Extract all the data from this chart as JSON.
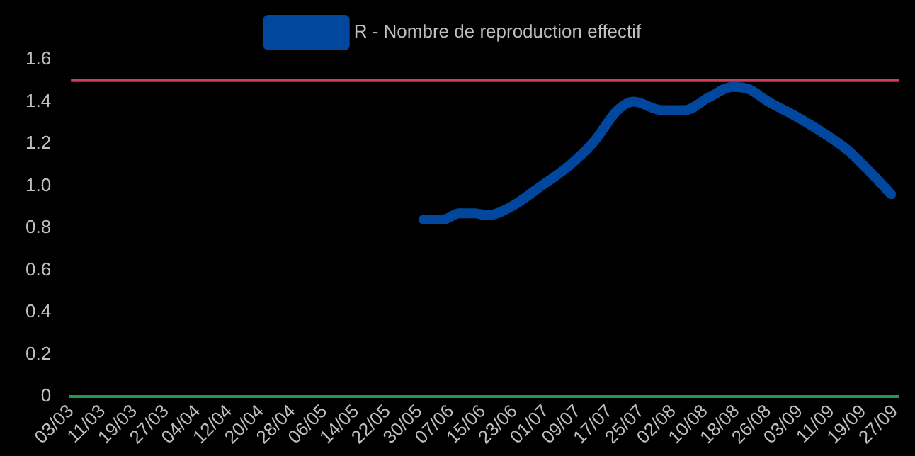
{
  "chart_data": {
    "type": "line",
    "x": [
      "--05-31",
      "--06-05",
      "--06-09",
      "--06-13",
      "--06-16",
      "--06-22",
      "--06-29",
      "--07-07",
      "--07-13",
      "--07-19",
      "--07-23",
      "--07-30",
      "--08-05",
      "--08-11",
      "--08-17",
      "--08-21",
      "--08-26",
      "--09-02",
      "--09-09",
      "--09-15",
      "--09-21",
      "--09-26"
    ],
    "series": [
      {
        "name": "R - Nombre de reproduction effectif",
        "color": "#00479d",
        "values": [
          0.84,
          0.84,
          0.87,
          0.87,
          0.86,
          0.9,
          0.99,
          1.1,
          1.21,
          1.36,
          1.4,
          1.36,
          1.36,
          1.42,
          1.47,
          1.46,
          1.4,
          1.33,
          1.25,
          1.17,
          1.06,
          0.96
        ]
      }
    ],
    "xlim": [
      "--03-03",
      "--09-28"
    ],
    "xticks": [
      {
        "value": "--03-03",
        "label": "03/03"
      },
      {
        "value": "--03-11",
        "label": "11/03"
      },
      {
        "value": "--03-19",
        "label": "19/03"
      },
      {
        "value": "--03-27",
        "label": "27/03"
      },
      {
        "value": "--04-04",
        "label": "04/04"
      },
      {
        "value": "--04-12",
        "label": "12/04"
      },
      {
        "value": "--04-20",
        "label": "20/04"
      },
      {
        "value": "--04-28",
        "label": "28/04"
      },
      {
        "value": "--05-06",
        "label": "06/05"
      },
      {
        "value": "--05-14",
        "label": "14/05"
      },
      {
        "value": "--05-22",
        "label": "22/05"
      },
      {
        "value": "--05-30",
        "label": "30/05"
      },
      {
        "value": "--06-07",
        "label": "07/06"
      },
      {
        "value": "--06-15",
        "label": "15/06"
      },
      {
        "value": "--06-23",
        "label": "23/06"
      },
      {
        "value": "--07-01",
        "label": "01/07"
      },
      {
        "value": "--07-09",
        "label": "09/07"
      },
      {
        "value": "--07-17",
        "label": "17/07"
      },
      {
        "value": "--07-25",
        "label": "25/07"
      },
      {
        "value": "--08-02",
        "label": "02/08"
      },
      {
        "value": "--08-10",
        "label": "10/08"
      },
      {
        "value": "--08-18",
        "label": "18/08"
      },
      {
        "value": "--08-26",
        "label": "26/08"
      },
      {
        "value": "--09-03",
        "label": "03/09"
      },
      {
        "value": "--09-11",
        "label": "11/09"
      },
      {
        "value": "--09-19",
        "label": "19/09"
      },
      {
        "value": "--09-27",
        "label": "27/09"
      }
    ],
    "ylim": [
      0,
      1.6
    ],
    "yticks": [
      0,
      0.2,
      0.4,
      0.6,
      0.8,
      {
        "value": 1,
        "label": "1.0"
      },
      1.2,
      1.4,
      1.6
    ],
    "ref_lines": [
      {
        "axis": "y",
        "value": 1.5,
        "color": "#d23a5a"
      }
    ],
    "grid": false,
    "legend": "top",
    "marker": "none",
    "line_style": "solid"
  }
}
